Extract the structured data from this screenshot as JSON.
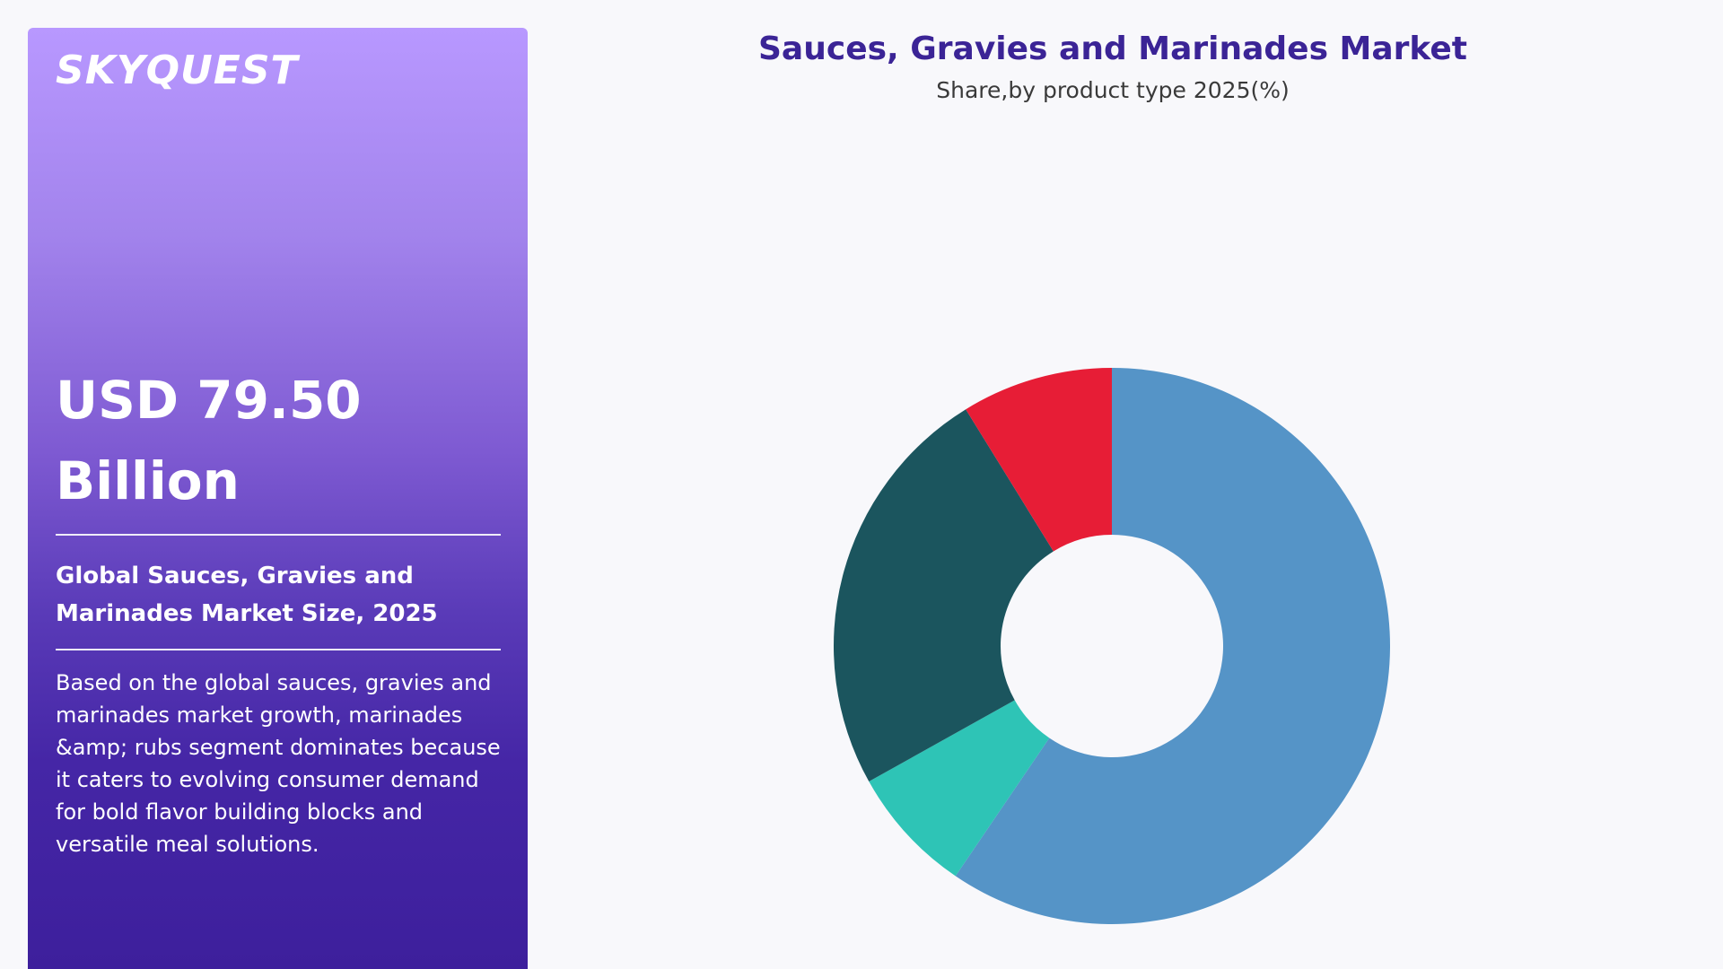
{
  "panel": {
    "logo": "SKYQUEST",
    "headline_line1": "USD 79.50",
    "headline_line2": "Billion",
    "size_label": "Global Sauces, Gravies and Marinades Market Size, 2025",
    "description": "Based on the global sauces, gravies and marinades market growth, marinades &amp; rubs segment dominates because it caters to evolving consumer demand for bold flavor building blocks and versatile meal solutions."
  },
  "chart_data": {
    "type": "pie",
    "title": "Sauces, Gravies and Marinades Market",
    "subtitle": "Share,by product type 2025(%)",
    "donut": true,
    "slices": [
      {
        "value": 59.5,
        "color": "#5594c7"
      },
      {
        "value": 7.4,
        "color": "#2ec4b6"
      },
      {
        "value": 24.3,
        "color": "#1b555e"
      },
      {
        "value": 8.8,
        "color": "#e71d36"
      }
    ],
    "legend": "none"
  }
}
